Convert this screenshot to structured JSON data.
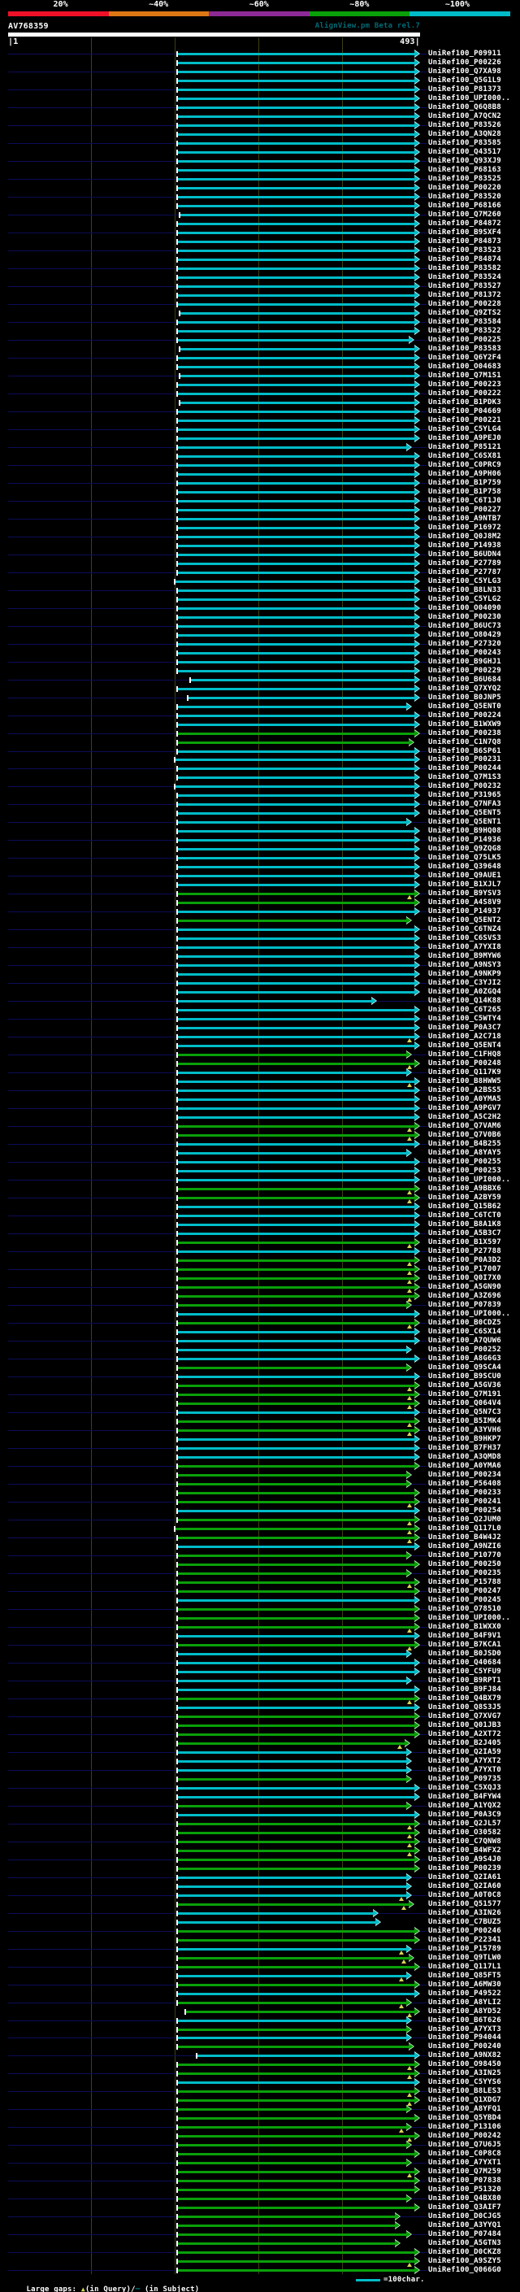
{
  "header": {
    "scale_bar": {
      "labels": [
        "20%",
        "~40%",
        "~60%",
        "~80%",
        "~100%"
      ],
      "segment_colors": [
        "#f01028",
        "#dd7714",
        "#8e2a96",
        "#09a009",
        "#00bcc8"
      ]
    },
    "query_name": "AV768359",
    "watermark": "AlignView.pm Beta rel.7",
    "ruler_start": "|1",
    "ruler_end": "493|"
  },
  "legend": {
    "large_gaps_label": "Large gaps: ",
    "query_symbol": "▲",
    "query_text": "(in Query)/",
    "subject_symbol": "─",
    "subject_text": " (in Subject)",
    "scale_sample_text": "=100char."
  },
  "colors": {
    "background": "#000000",
    "text": "#ffffff",
    "watermark": "#006a74",
    "grid": "#3f3f10",
    "guide_navy": "#0c0c58",
    "cyan_identity": "#00bcc8",
    "green_identity": "#09a009",
    "gap_marker_yellow": "#d6d65a",
    "query_bar_white": "#ffffff"
  },
  "chart_data": {
    "type": "bar",
    "orientation": "horizontal",
    "title": "AV768359",
    "query_length": 493,
    "axis_range": [
      1,
      493
    ],
    "grid_interval_chars": 100,
    "identity_color_scale": {
      "20%": "#f01028",
      "~40%": "#dd7714",
      "~60%": "#8e2a96",
      "~80%": "#09a009",
      "~100%": "#00bcc8"
    },
    "label_prefix": "UniRef100_",
    "default_align_start": 204,
    "default_align_end": 493,
    "hits": [
      {
        "id": "P09911",
        "c": "c"
      },
      {
        "id": "P00226",
        "c": "c"
      },
      {
        "id": "Q7XA98",
        "c": "c"
      },
      {
        "id": "Q5G1L9",
        "c": "c"
      },
      {
        "id": "P81373",
        "c": "c"
      },
      {
        "id": "UPI000..",
        "c": "c"
      },
      {
        "id": "Q6Q8B8",
        "c": "c"
      },
      {
        "id": "A7QCN2",
        "c": "c"
      },
      {
        "id": "P83526",
        "c": "c"
      },
      {
        "id": "A3QN28",
        "c": "c"
      },
      {
        "id": "P83585",
        "c": "c"
      },
      {
        "id": "Q43517",
        "c": "c"
      },
      {
        "id": "Q93XJ9",
        "c": "c"
      },
      {
        "id": "P68163",
        "c": "c"
      },
      {
        "id": "P83525",
        "c": "c"
      },
      {
        "id": "P00220",
        "c": "c"
      },
      {
        "id": "P83520",
        "c": "c"
      },
      {
        "id": "P68166",
        "c": "c"
      },
      {
        "id": "Q7M260",
        "c": "c",
        "s": 207
      },
      {
        "id": "P84872",
        "c": "c"
      },
      {
        "id": "B9SXF4",
        "c": "c"
      },
      {
        "id": "P84873",
        "c": "c"
      },
      {
        "id": "P83523",
        "c": "c"
      },
      {
        "id": "P84874",
        "c": "c"
      },
      {
        "id": "P83582",
        "c": "c"
      },
      {
        "id": "P83524",
        "c": "c"
      },
      {
        "id": "P83527",
        "c": "c"
      },
      {
        "id": "P81372",
        "c": "c"
      },
      {
        "id": "P00228",
        "c": "c"
      },
      {
        "id": "Q9ZTS2",
        "c": "c",
        "s": 207
      },
      {
        "id": "P83584",
        "c": "c"
      },
      {
        "id": "P83522",
        "c": "c"
      },
      {
        "id": "P00225",
        "c": "c",
        "e": 486
      },
      {
        "id": "P83583",
        "c": "c",
        "s": 207
      },
      {
        "id": "Q6Y2F4",
        "c": "c"
      },
      {
        "id": "O04683",
        "c": "c"
      },
      {
        "id": "Q7M1S1",
        "c": "c",
        "s": 207
      },
      {
        "id": "P00223",
        "c": "c"
      },
      {
        "id": "P00222",
        "c": "c"
      },
      {
        "id": "B1PDK3",
        "c": "c",
        "s": 207
      },
      {
        "id": "P04669",
        "c": "c"
      },
      {
        "id": "P00221",
        "c": "c"
      },
      {
        "id": "C5YLG4",
        "c": "c"
      },
      {
        "id": "A9PEJ0",
        "c": "c"
      },
      {
        "id": "P85121",
        "c": "c",
        "e": 483
      },
      {
        "id": "C6SX81",
        "c": "c"
      },
      {
        "id": "C0PRC9",
        "c": "c"
      },
      {
        "id": "A9PH06",
        "c": "c"
      },
      {
        "id": "B1P759",
        "c": "c"
      },
      {
        "id": "B1P758",
        "c": "c"
      },
      {
        "id": "C6T1J0",
        "c": "c"
      },
      {
        "id": "P00227",
        "c": "c"
      },
      {
        "id": "A9NTB7",
        "c": "c"
      },
      {
        "id": "P16972",
        "c": "c"
      },
      {
        "id": "Q0J8M2",
        "c": "c"
      },
      {
        "id": "P14938",
        "c": "c"
      },
      {
        "id": "B6UDN4",
        "c": "c"
      },
      {
        "id": "P27789",
        "c": "c"
      },
      {
        "id": "P27787",
        "c": "c"
      },
      {
        "id": "C5YLG3",
        "c": "c",
        "s": 201
      },
      {
        "id": "B8LN33",
        "c": "c"
      },
      {
        "id": "C5YLG2",
        "c": "c"
      },
      {
        "id": "O04090",
        "c": "c"
      },
      {
        "id": "P00230",
        "c": "c"
      },
      {
        "id": "B6UC73",
        "c": "c"
      },
      {
        "id": "O80429",
        "c": "c"
      },
      {
        "id": "P27320",
        "c": "c"
      },
      {
        "id": "P00243",
        "c": "c"
      },
      {
        "id": "B9GHJ1",
        "c": "c"
      },
      {
        "id": "P00229",
        "c": "c"
      },
      {
        "id": "B6U684",
        "c": "c",
        "s": 219
      },
      {
        "id": "Q7XYQ2",
        "c": "c"
      },
      {
        "id": "B0JNP5",
        "c": "c",
        "s": 216
      },
      {
        "id": "Q5ENT0",
        "c": "c",
        "e": 483
      },
      {
        "id": "P00224",
        "c": "c"
      },
      {
        "id": "B1WXW9",
        "c": "c"
      },
      {
        "id": "P00238",
        "c": "g"
      },
      {
        "id": "C1N7Q8",
        "c": "g",
        "e": 486
      },
      {
        "id": "B6SP61",
        "c": "c"
      },
      {
        "id": "P00231",
        "c": "c",
        "s": 201
      },
      {
        "id": "P00244",
        "c": "c"
      },
      {
        "id": "Q7M1S3",
        "c": "c"
      },
      {
        "id": "P00232",
        "c": "c",
        "s": 201
      },
      {
        "id": "P31965",
        "c": "c"
      },
      {
        "id": "Q7NFA3",
        "c": "c"
      },
      {
        "id": "Q5ENT5",
        "c": "c"
      },
      {
        "id": "Q5ENT1",
        "c": "c",
        "e": 483
      },
      {
        "id": "B9HQ08",
        "c": "c"
      },
      {
        "id": "P14936",
        "c": "c"
      },
      {
        "id": "Q9ZQG8",
        "c": "c"
      },
      {
        "id": "Q75LK5",
        "c": "c"
      },
      {
        "id": "Q39648",
        "c": "c"
      },
      {
        "id": "Q9AUE1",
        "c": "c"
      },
      {
        "id": "B1XJL7",
        "c": "c"
      },
      {
        "id": "B9YSV3",
        "c": "g",
        "m": 1
      },
      {
        "id": "A4S8V9",
        "c": "g"
      },
      {
        "id": "P14937",
        "c": "c"
      },
      {
        "id": "Q5ENT2",
        "c": "g",
        "e": 483
      },
      {
        "id": "C6TNZ4",
        "c": "c"
      },
      {
        "id": "C6SVS3",
        "c": "c"
      },
      {
        "id": "A7YXI8",
        "c": "c"
      },
      {
        "id": "B9MYW6",
        "c": "c"
      },
      {
        "id": "A9NSY3",
        "c": "c"
      },
      {
        "id": "A9NKP9",
        "c": "c"
      },
      {
        "id": "C3YJI2",
        "c": "c"
      },
      {
        "id": "A0ZGQ4",
        "c": "c"
      },
      {
        "id": "Q14K88",
        "c": "c",
        "e": 442
      },
      {
        "id": "C6T265",
        "c": "c"
      },
      {
        "id": "C5WTY4",
        "c": "c"
      },
      {
        "id": "P0A3C7",
        "c": "c"
      },
      {
        "id": "A2C718",
        "c": "c",
        "m": 1
      },
      {
        "id": "Q5ENT4",
        "c": "c"
      },
      {
        "id": "C1FHQ8",
        "c": "g",
        "e": 483
      },
      {
        "id": "P00248",
        "c": "g",
        "m": 1
      },
      {
        "id": "Q117K9",
        "c": "c",
        "e": 483
      },
      {
        "id": "B8HWW5",
        "c": "c",
        "m": 1
      },
      {
        "id": "A2BSS5",
        "c": "c"
      },
      {
        "id": "A0YMA5",
        "c": "c"
      },
      {
        "id": "A9PGV7",
        "c": "c"
      },
      {
        "id": "A5C2H2",
        "c": "c"
      },
      {
        "id": "Q7VAM6",
        "c": "g",
        "m": 1
      },
      {
        "id": "Q7V0B6",
        "c": "g",
        "m": 1
      },
      {
        "id": "B4B255",
        "c": "c"
      },
      {
        "id": "A8YAY5",
        "c": "c",
        "e": 483
      },
      {
        "id": "P00255",
        "c": "c"
      },
      {
        "id": "P00253",
        "c": "c"
      },
      {
        "id": "UPI000..",
        "c": "c"
      },
      {
        "id": "A9BBX6",
        "c": "g",
        "m": 1
      },
      {
        "id": "A2BY59",
        "c": "g",
        "m": 1
      },
      {
        "id": "Q15B62",
        "c": "c"
      },
      {
        "id": "C6TCT0",
        "c": "c"
      },
      {
        "id": "B8A1K8",
        "c": "c"
      },
      {
        "id": "A5B3C7",
        "c": "c"
      },
      {
        "id": "B1X597",
        "c": "g",
        "m": 1
      },
      {
        "id": "P27788",
        "c": "c"
      },
      {
        "id": "P0A3D2",
        "c": "g",
        "m": 1
      },
      {
        "id": "P17007",
        "c": "g",
        "m": 1
      },
      {
        "id": "Q0I7X0",
        "c": "g",
        "m": 1
      },
      {
        "id": "A5GN90",
        "c": "g",
        "m": 1
      },
      {
        "id": "A3Z696",
        "c": "g",
        "m": 1
      },
      {
        "id": "P07839",
        "c": "g",
        "e": 483
      },
      {
        "id": "UPI000..",
        "c": "c"
      },
      {
        "id": "B0CDZ5",
        "c": "g",
        "m": 1
      },
      {
        "id": "C6SX14",
        "c": "c"
      },
      {
        "id": "A7QUW6",
        "c": "c"
      },
      {
        "id": "P00252",
        "c": "c",
        "e": 483
      },
      {
        "id": "A8G6G3",
        "c": "c"
      },
      {
        "id": "Q9SCA4",
        "c": "g",
        "e": 483
      },
      {
        "id": "B9SCU0",
        "c": "c"
      },
      {
        "id": "A5GV36",
        "c": "g",
        "m": 1
      },
      {
        "id": "Q7M191",
        "c": "g",
        "m": 1
      },
      {
        "id": "Q064V4",
        "c": "g",
        "m": 1
      },
      {
        "id": "Q5N7C3",
        "c": "c"
      },
      {
        "id": "B5IMK4",
        "c": "g",
        "m": 1
      },
      {
        "id": "A3YVH6",
        "c": "g",
        "m": 1
      },
      {
        "id": "B9HKP7",
        "c": "c"
      },
      {
        "id": "B7FH37",
        "c": "c"
      },
      {
        "id": "A3QMD8",
        "c": "c"
      },
      {
        "id": "A0YMA6",
        "c": "g"
      },
      {
        "id": "P00234",
        "c": "g",
        "e": 483
      },
      {
        "id": "P56408",
        "c": "g",
        "e": 483
      },
      {
        "id": "P00233",
        "c": "g"
      },
      {
        "id": "P00241",
        "c": "g",
        "m": 1
      },
      {
        "id": "P00254",
        "c": "c"
      },
      {
        "id": "Q2JUM0",
        "c": "g",
        "m": 1
      },
      {
        "id": "Q117L0",
        "c": "g",
        "s": 201,
        "m": 1
      },
      {
        "id": "B4W4J2",
        "c": "g",
        "m": 1
      },
      {
        "id": "A9NZI6",
        "c": "c"
      },
      {
        "id": "P10770",
        "c": "g",
        "e": 483
      },
      {
        "id": "P00250",
        "c": "g"
      },
      {
        "id": "P00235",
        "c": "g",
        "e": 483
      },
      {
        "id": "P15788",
        "c": "g",
        "m": 1
      },
      {
        "id": "P00247",
        "c": "g"
      },
      {
        "id": "P00245",
        "c": "c"
      },
      {
        "id": "O78510",
        "c": "g"
      },
      {
        "id": "UPI000..",
        "c": "g"
      },
      {
        "id": "B1WXX0",
        "c": "g",
        "m": 1
      },
      {
        "id": "B4F9V1",
        "c": "c"
      },
      {
        "id": "B7KCA1",
        "c": "g",
        "m": 1
      },
      {
        "id": "B0JSD0",
        "c": "c",
        "e": 483
      },
      {
        "id": "Q40684",
        "c": "c"
      },
      {
        "id": "C5YFU9",
        "c": "c"
      },
      {
        "id": "B9RPT1",
        "c": "c",
        "e": 483
      },
      {
        "id": "B9FJ84",
        "c": "c"
      },
      {
        "id": "Q4BX79",
        "c": "g",
        "m": 1
      },
      {
        "id": "Q8S3J5",
        "c": "c"
      },
      {
        "id": "Q7XVG7",
        "c": "g"
      },
      {
        "id": "Q01JB3",
        "c": "g"
      },
      {
        "id": "A2XT72",
        "c": "g"
      },
      {
        "id": "B2J405",
        "c": "g",
        "e": 481,
        "m": 1
      },
      {
        "id": "Q2IA59",
        "c": "c",
        "e": 483
      },
      {
        "id": "A7YXT2",
        "c": "c",
        "e": 483
      },
      {
        "id": "A7YXT0",
        "c": "c",
        "e": 483
      },
      {
        "id": "P09735",
        "c": "g",
        "e": 483
      },
      {
        "id": "C5XQJ3",
        "c": "c"
      },
      {
        "id": "B4FYW4",
        "c": "c"
      },
      {
        "id": "A1YQX2",
        "c": "g",
        "e": 483
      },
      {
        "id": "P0A3C9",
        "c": "c"
      },
      {
        "id": "Q2JL57",
        "c": "g",
        "m": 1
      },
      {
        "id": "O30582",
        "c": "g",
        "m": 1
      },
      {
        "id": "C7QNW8",
        "c": "g",
        "m": 1
      },
      {
        "id": "B4WFX2",
        "c": "g",
        "m": 1
      },
      {
        "id": "A9S4J0",
        "c": "g"
      },
      {
        "id": "P00239",
        "c": "g"
      },
      {
        "id": "Q2IA61",
        "c": "c",
        "e": 483
      },
      {
        "id": "Q2IA60",
        "c": "c",
        "e": 483
      },
      {
        "id": "A0T0C8",
        "c": "c",
        "e": 483,
        "m": 1
      },
      {
        "id": "Q51577",
        "c": "g",
        "e": 486,
        "m": 1
      },
      {
        "id": "A3IN26",
        "c": "c",
        "e": 443
      },
      {
        "id": "C7BUZ5",
        "c": "c",
        "e": 446
      },
      {
        "id": "P00246",
        "c": "g"
      },
      {
        "id": "P22341",
        "c": "g"
      },
      {
        "id": "P15789",
        "c": "c",
        "e": 483,
        "m": 1
      },
      {
        "id": "Q9TLW0",
        "c": "g",
        "e": 486,
        "m": 1
      },
      {
        "id": "Q117L1",
        "c": "g"
      },
      {
        "id": "Q85FT5",
        "c": "c",
        "e": 483,
        "m": 1
      },
      {
        "id": "A6MW30",
        "c": "g"
      },
      {
        "id": "P49522",
        "c": "c"
      },
      {
        "id": "A8YLI2",
        "c": "g",
        "e": 483,
        "m": 1
      },
      {
        "id": "A8YD52",
        "c": "g",
        "s": 213,
        "m": 1
      },
      {
        "id": "B6T626",
        "c": "c",
        "e": 483
      },
      {
        "id": "A7YXT3",
        "c": "g",
        "e": 483
      },
      {
        "id": "P94044",
        "c": "c",
        "e": 483
      },
      {
        "id": "P00240",
        "c": "g",
        "e": 486
      },
      {
        "id": "A9NX82",
        "c": "c",
        "s": 227
      },
      {
        "id": "O98450",
        "c": "g",
        "m": 1
      },
      {
        "id": "A3IN25",
        "c": "g",
        "m": 1
      },
      {
        "id": "C5YYS6",
        "c": "c"
      },
      {
        "id": "B8LES3",
        "c": "g",
        "m": 1
      },
      {
        "id": "Q1XDG7",
        "c": "g",
        "m": 1
      },
      {
        "id": "A8YFQ1",
        "c": "g",
        "e": 483
      },
      {
        "id": "Q5YBD4",
        "c": "g"
      },
      {
        "id": "P13106",
        "c": "g",
        "e": 483,
        "m": 1
      },
      {
        "id": "P00242",
        "c": "g",
        "m": 1
      },
      {
        "id": "Q7U6J5",
        "c": "g",
        "e": 483
      },
      {
        "id": "C0P8C8",
        "c": "g"
      },
      {
        "id": "A7YXT1",
        "c": "g",
        "e": 483
      },
      {
        "id": "Q7M259",
        "c": "g",
        "m": 1
      },
      {
        "id": "P07838",
        "c": "g"
      },
      {
        "id": "P51320",
        "c": "g"
      },
      {
        "id": "Q4BX80",
        "c": "g",
        "e": 483
      },
      {
        "id": "Q3AIF7",
        "c": "g"
      },
      {
        "id": "D0CJG5",
        "c": "g",
        "e": 470
      },
      {
        "id": "A3YYQ1",
        "c": "g",
        "e": 470
      },
      {
        "id": "P07484",
        "c": "g",
        "e": 483
      },
      {
        "id": "A5GTN3",
        "c": "g",
        "e": 470
      },
      {
        "id": "D0CKZ8",
        "c": "g"
      },
      {
        "id": "A9SZY5",
        "c": "g",
        "m": 1
      },
      {
        "id": "Q066G0",
        "c": "g"
      }
    ]
  }
}
